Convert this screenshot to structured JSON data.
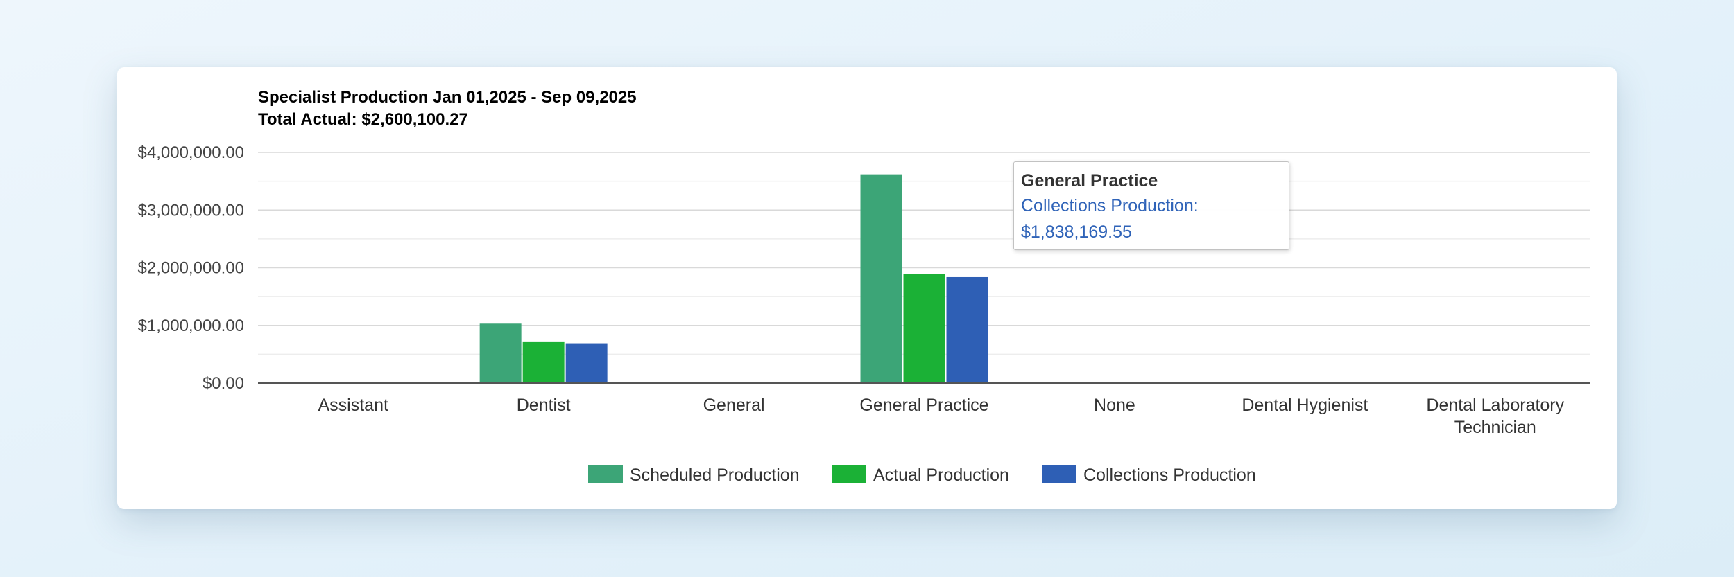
{
  "chart_data": {
    "type": "bar",
    "title": "Specialist Production Jan 01,2025 - Sep 09,2025",
    "subtitle": "Total Actual: $2,600,100.27",
    "categories": [
      "Assistant",
      "Dentist",
      "General",
      "General Practice",
      "None",
      "Dental Hygienist",
      "Dental Laboratory Technician"
    ],
    "category_lines": [
      [
        "Assistant"
      ],
      [
        "Dentist"
      ],
      [
        "General"
      ],
      [
        "General Practice"
      ],
      [
        "None"
      ],
      [
        "Dental Hygienist"
      ],
      [
        "Dental Laboratory",
        "Technician"
      ]
    ],
    "series": [
      {
        "name": "Scheduled Production",
        "color": "#3ca577",
        "values": [
          0,
          1030000,
          0,
          3620000,
          0,
          0,
          0
        ]
      },
      {
        "name": "Actual Production",
        "color": "#1bb136",
        "values": [
          0,
          710000,
          0,
          1890000,
          0,
          0,
          0
        ]
      },
      {
        "name": "Collections Production",
        "color": "#2e5fb5",
        "values": [
          0,
          690000,
          0,
          1838169.55,
          0,
          0,
          0
        ]
      }
    ],
    "yticks": [
      "$0.00",
      "$1,000,000.00",
      "$2,000,000.00",
      "$3,000,000.00",
      "$4,000,000.00"
    ],
    "ylim": [
      0,
      4000000
    ],
    "xlabel": "",
    "ylabel": "",
    "grid": true,
    "legend_position": "bottom-center"
  },
  "tooltip": {
    "title": "General Practice",
    "series_label": "Collections Production:",
    "value": "$1,838,169.55",
    "color": "#2f63b8"
  }
}
